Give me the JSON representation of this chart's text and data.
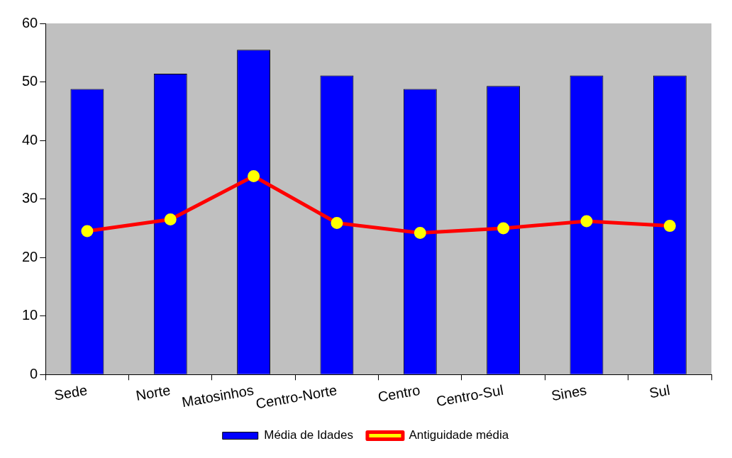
{
  "chart_data": {
    "type": "bar",
    "categories": [
      "Sede",
      "Norte",
      "Matosinhos",
      "Centro-Norte",
      "Centro",
      "Centro-Sul",
      "Sines",
      "Sul"
    ],
    "series": [
      {
        "name": "Média de Idades",
        "color": "#0000ff",
        "values": [
          48.8,
          51.4,
          55.5,
          51.1,
          48.8,
          49.3,
          51.1,
          51.1
        ]
      },
      {
        "name": "Antiguidade média",
        "type": "line",
        "color": "#ff0000",
        "values": [
          24.5,
          26.5,
          33.9,
          25.9,
          24.2,
          25.0,
          26.2,
          25.4
        ]
      }
    ],
    "ylim": [
      0,
      60
    ],
    "yticks": [
      0,
      10,
      20,
      30,
      40,
      50,
      60
    ],
    "grid": false,
    "legend": "bottom",
    "marker": "circle"
  }
}
